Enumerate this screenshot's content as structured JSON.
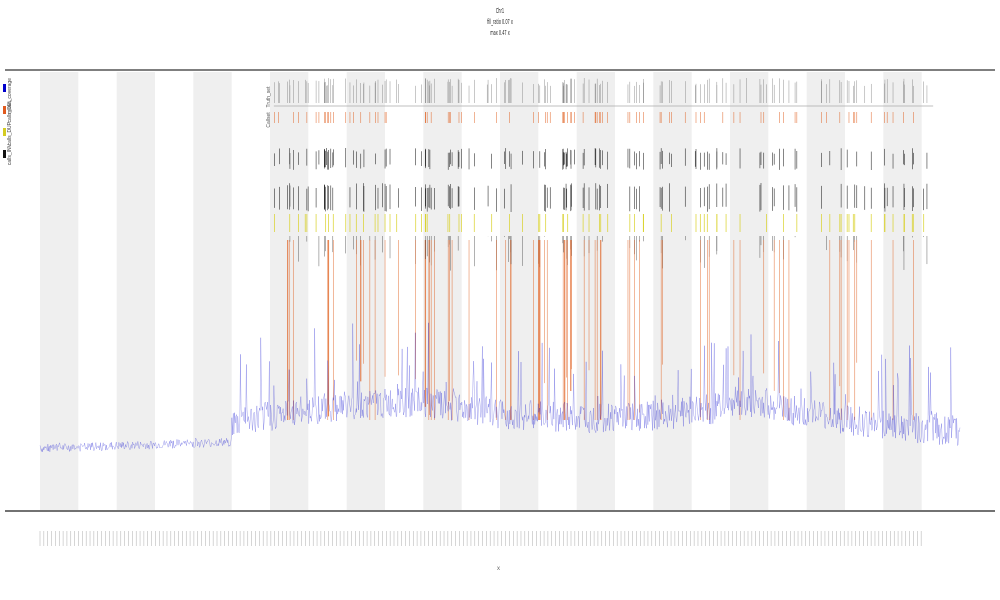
{
  "title_lines": [
    "Chr1",
    "fill_ratio 0.07 x",
    "max 0.47 x"
  ],
  "legend": [
    {
      "label": "mean_coverage",
      "color": "#0000cc"
    },
    {
      "label": "calls_DEL",
      "color": "#e05a1e"
    },
    {
      "label": "calls_DUP",
      "color": "#d4cc22"
    },
    {
      "label": "calls_INV",
      "color": "#111111"
    }
  ],
  "track_labels": [
    "Truth_set",
    "Callset"
  ],
  "ylabel": "",
  "xlabel": "x",
  "chart_data": {
    "type": "line",
    "title": "",
    "xlabel": "x",
    "ylabel": "",
    "xlim": [
      0,
      240
    ],
    "ylim": [
      0,
      1
    ],
    "grid": false,
    "legend_position": "top-left",
    "band_count": 12,
    "tick_label_count": 230,
    "coverage_series": {
      "name": "mean_coverage",
      "color": "#0000cc",
      "profile": [
        [
          0,
          0.14
        ],
        [
          50,
          0.155
        ],
        [
          48,
          0.15
        ],
        [
          49,
          0.17
        ],
        [
          50,
          0.195
        ],
        [
          60,
          0.215
        ],
        [
          80,
          0.24
        ],
        [
          100,
          0.245
        ],
        [
          120,
          0.22
        ],
        [
          140,
          0.21
        ],
        [
          160,
          0.215
        ],
        [
          175,
          0.23
        ],
        [
          180,
          0.25
        ],
        [
          190,
          0.24
        ],
        [
          200,
          0.22
        ],
        [
          215,
          0.2
        ],
        [
          225,
          0.19
        ],
        [
          240,
          0.18
        ]
      ]
    },
    "events": {
      "x_start": 61,
      "x_end": 233,
      "count": 160,
      "colors": {
        "truth": "#777777",
        "del": "#e06020",
        "dup": "#d8d020",
        "inv": "#111111"
      }
    }
  }
}
